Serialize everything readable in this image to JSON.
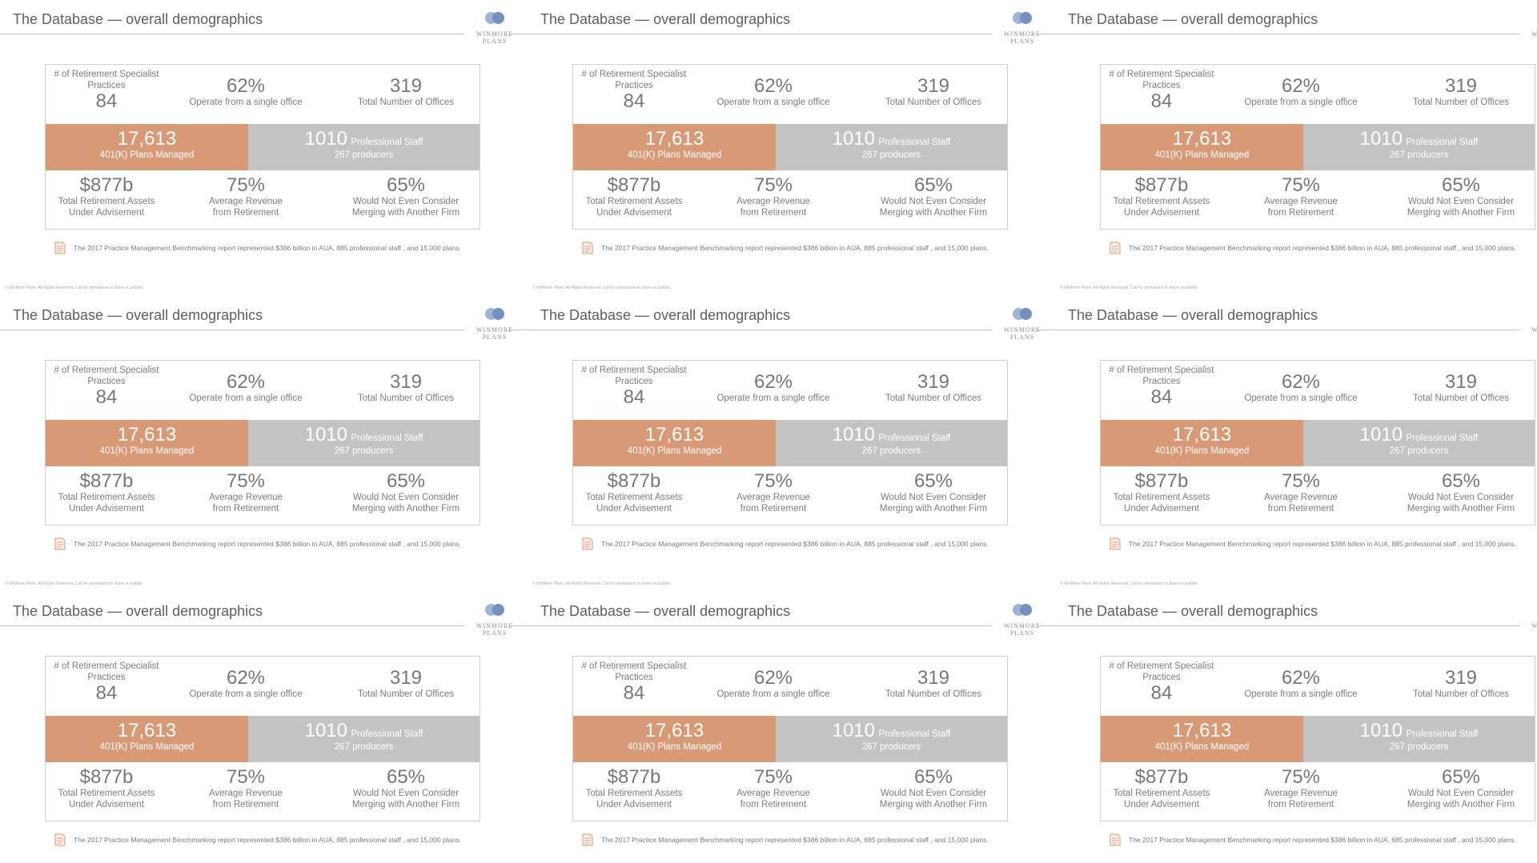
{
  "slides": {
    "title": "The Database — overall demographics",
    "logo": {
      "line1": "WINMORE",
      "line2": "PLANS",
      "icon": "winmore-logo-icon"
    },
    "practices": {
      "label_line1": "# of Retirement Specialist",
      "label_line2": "Practices",
      "value": "84"
    },
    "single_office": {
      "value": "62%",
      "label": "Operate from a single office"
    },
    "offices": {
      "value": "319",
      "label": "Total Number of Offices"
    },
    "plans": {
      "value": "17,613",
      "label": "401(K) Plans Managed"
    },
    "staff": {
      "value": "1010",
      "label": "Professional Staff",
      "sub": "267 producers"
    },
    "assets": {
      "value": "$877b",
      "label_line1": "Total Retirement Assets",
      "label_line2": "Under Advisement"
    },
    "revenue": {
      "value": "75%",
      "label_line1": "Average Revenue",
      "label_line2": "from Retirement"
    },
    "merging": {
      "value": "65%",
      "label_line1": "Would Not Even Consider",
      "label_line2": "Merging with Another Firm"
    },
    "footnote": "The 2017 Practice Management Benchmarking report represented $386 billion in AUA, 885 professional staff , and 15,000 plans.",
    "footnote_icon": "document-icon",
    "copyright": "© WinMore Plans. All Rights Reserved. Call for permission to share or publish."
  },
  "colors": {
    "accent_orange": "#d89a76",
    "band_gray": "#c3c3c3",
    "logo_blue": "#7390bf",
    "rule_blue": "#b3c2d6"
  }
}
